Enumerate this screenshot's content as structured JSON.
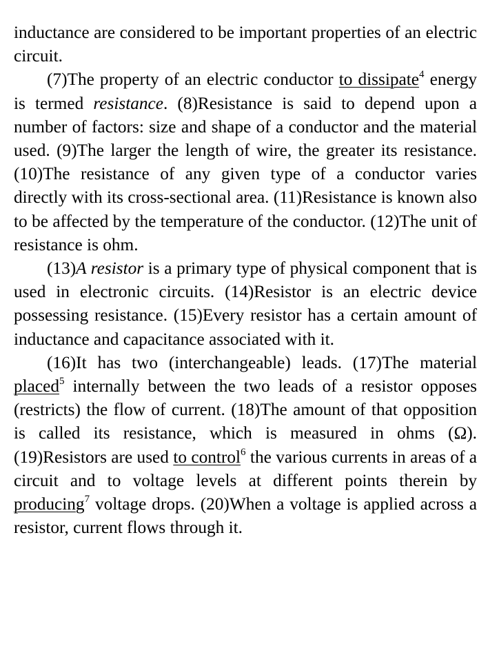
{
  "paragraphs": [
    {
      "id": "p0",
      "indent": false,
      "runs": [
        {
          "t": "inductance are considered to be important properties of an electric circuit."
        }
      ]
    },
    {
      "id": "p1",
      "indent": true,
      "runs": [
        {
          "t": "(7)The property of an electric conductor "
        },
        {
          "t": "to dissipate",
          "u": true
        },
        {
          "t": "4",
          "sup": true
        },
        {
          "t": " energy is termed "
        },
        {
          "t": "resistance",
          "i": true
        },
        {
          "t": ". (8)Resistance is said to depend upon a number of factors: size and shape of a conductor and the material used. (9)The larger the length of wire, the greater its resistance. (10)The resistance of any given type of a conductor varies directly with its cross-sectional area. (11)Resistance is known also to be affected by the temperature of the conductor. (12)The unit of resistance is ohm."
        }
      ]
    },
    {
      "id": "p2",
      "indent": true,
      "runs": [
        {
          "t": "(13)"
        },
        {
          "t": "A resistor",
          "i": true
        },
        {
          "t": " is a primary type of physical component that is used in electronic circuits. (14)Resistor is an electric device possessing resistance. (15)Every resistor has a certain amount of inductance and capacitance associated with it."
        }
      ]
    },
    {
      "id": "p3",
      "indent": true,
      "runs": [
        {
          "t": "(16)It has two (interchangeable) leads. (17)The material "
        },
        {
          "t": "placed",
          "u": true
        },
        {
          "t": "5",
          "sup": true
        },
        {
          "t": " internally between the two leads of a resistor opposes (restricts) the flow of current. (18)The amount of that opposition is called its resistance, which is measured in ohms (Ω). (19)Resistors are used "
        },
        {
          "t": "to control",
          "u": true
        },
        {
          "t": "6",
          "sup": true
        },
        {
          "t": " the various currents in areas of a circuit and to voltage levels at different points therein by "
        },
        {
          "t": "producing",
          "u": true
        },
        {
          "t": "7",
          "sup": true
        },
        {
          "t": " voltage drops. (20)When a voltage is applied across a resistor, current flows through it."
        }
      ]
    }
  ]
}
